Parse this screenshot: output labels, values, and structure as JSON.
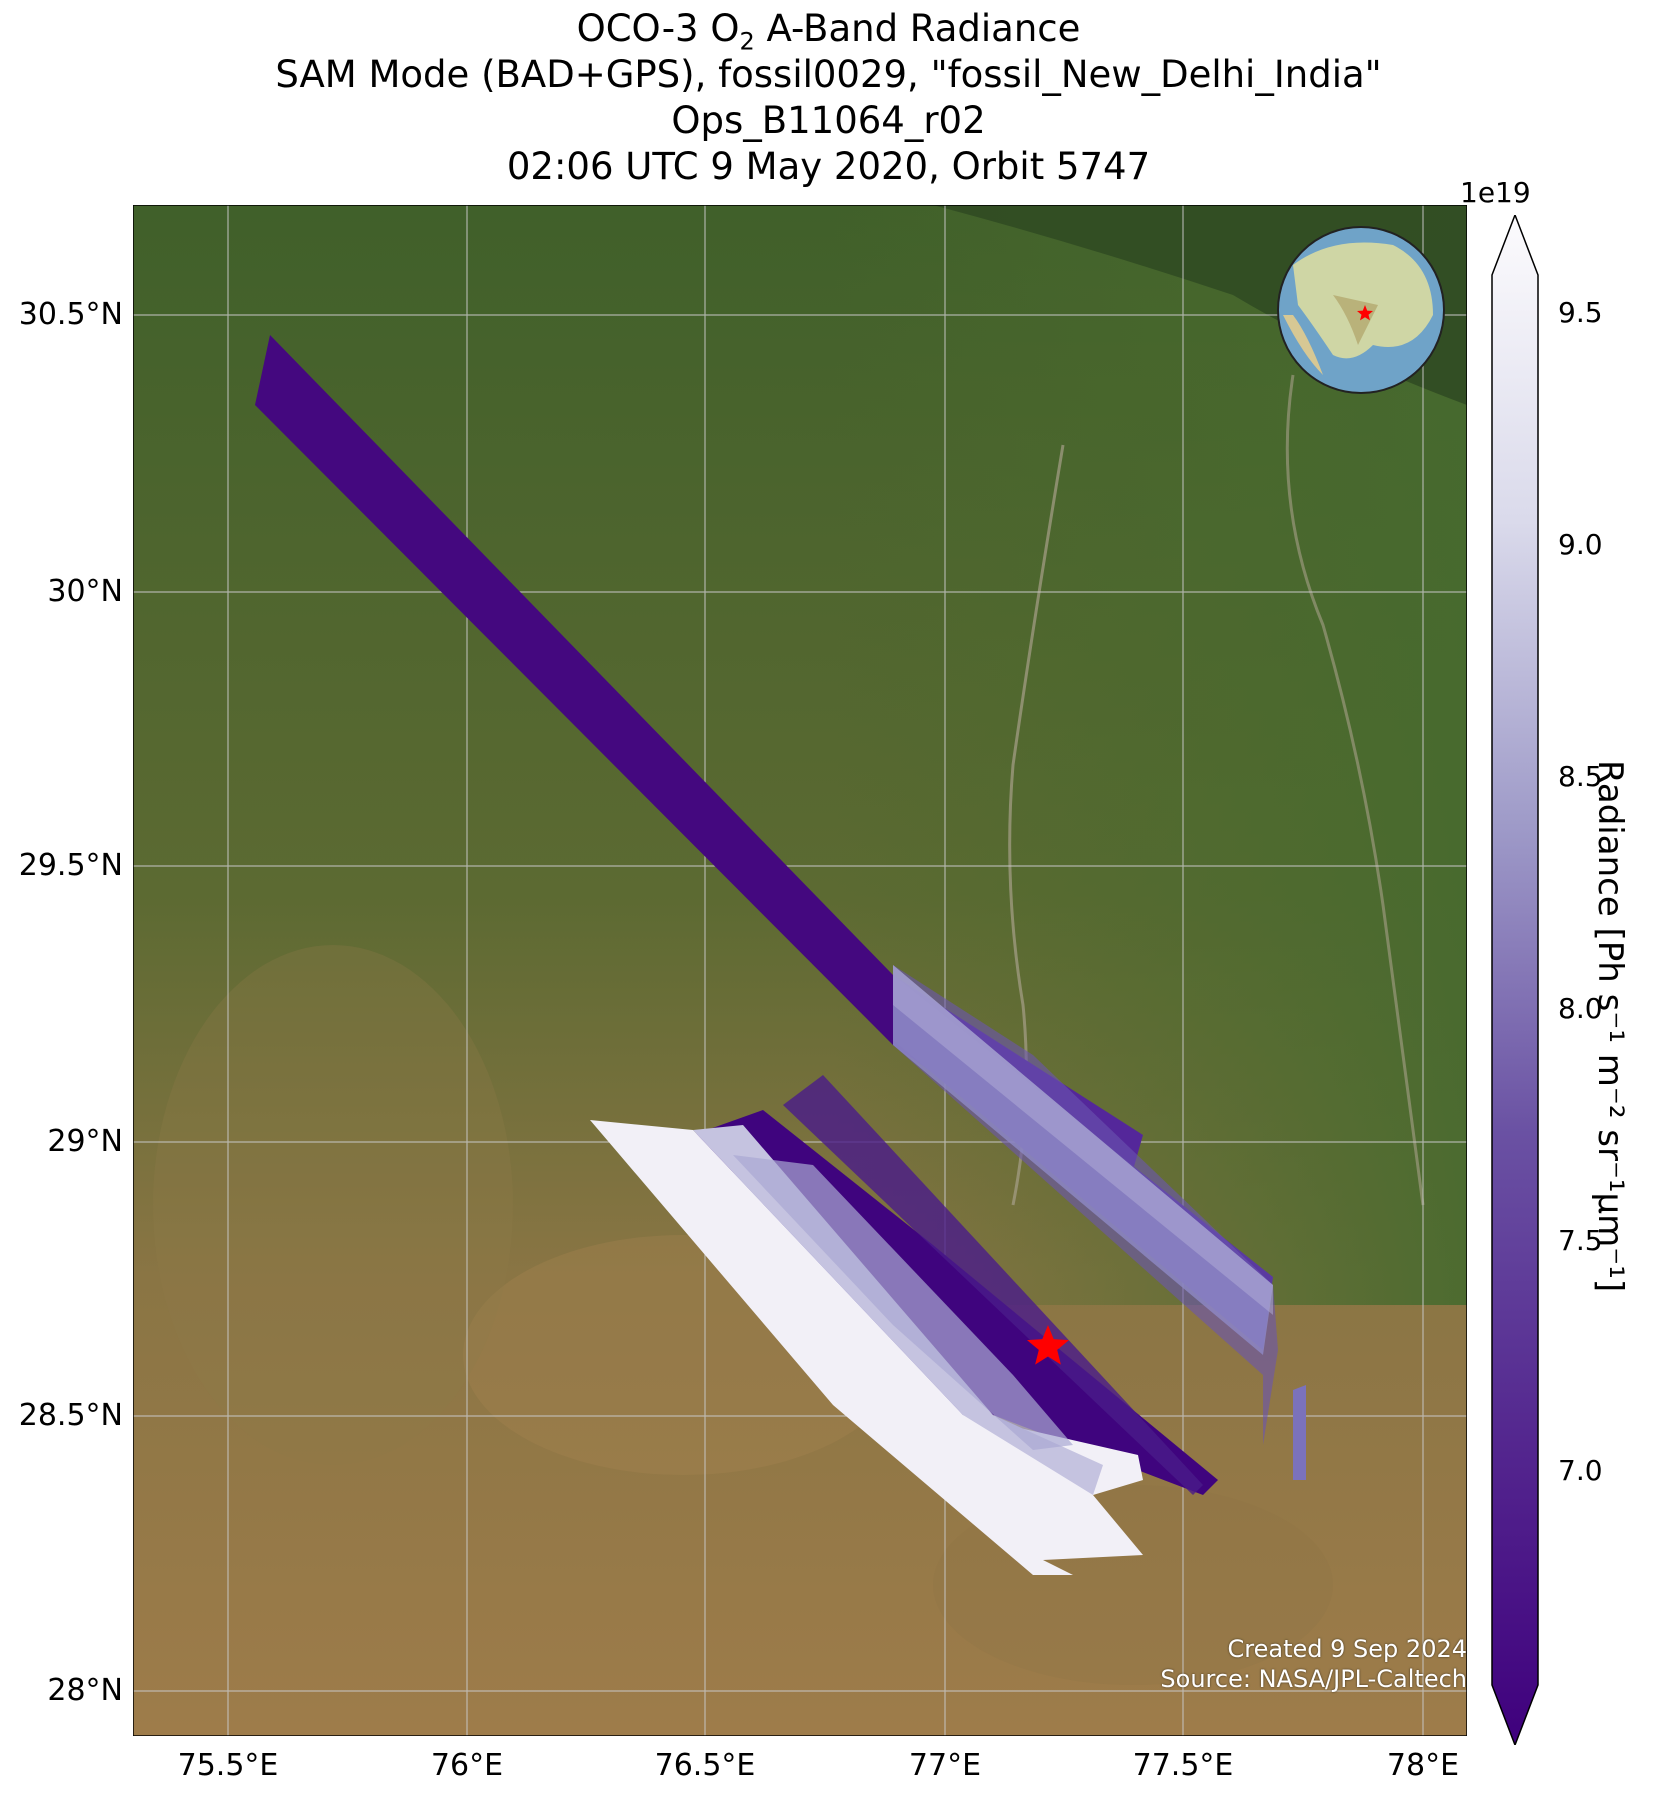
{
  "title": {
    "line1_pre": "OCO-3 O",
    "line1_sub": "2",
    "line1_post": " A-Band Radiance",
    "line2": "SAM Mode (BAD+GPS), fossil0029, \"fossil_New_Delhi_India\"",
    "line3": "Ops_B11064_r02",
    "line4": "02:06 UTC 9 May 2020, Orbit 5747"
  },
  "axes": {
    "lat_ticks": [
      "30.5°N",
      "30°N",
      "29.5°N",
      "29°N",
      "28.5°N",
      "28°N"
    ],
    "lon_ticks": [
      "75.5°E",
      "76°E",
      "76.5°E",
      "77°E",
      "77.5°E",
      "78°E"
    ],
    "lon_range": [
      75.3,
      78.1
    ],
    "lat_range": [
      27.9,
      30.7
    ]
  },
  "colorbar": {
    "exponent": "1e19",
    "ticks": [
      "7.0",
      "7.5",
      "8.0",
      "8.5",
      "9.0",
      "9.5"
    ],
    "label": "Radiance [Ph s⁻¹ m⁻² sr⁻¹μm⁻¹]",
    "colormap": "Purples_r",
    "range": [
      6.6,
      9.6
    ]
  },
  "target": {
    "name": "fossil_New_Delhi_India",
    "lon": 77.22,
    "lat": 28.63,
    "marker": "red-star"
  },
  "inset_globe": {
    "marker": "red-star",
    "shows": "Asia / India"
  },
  "credits": {
    "created": "Created 9 Sep 2024",
    "source": "Source: NASA/JPL-Caltech"
  },
  "colors": {
    "land_dark": "#3d5a22",
    "land_brown": "#9a7a48",
    "low_radiance": "#3f007d",
    "high_radiance": "#fcfbfd",
    "target_star": "#ff0000"
  }
}
